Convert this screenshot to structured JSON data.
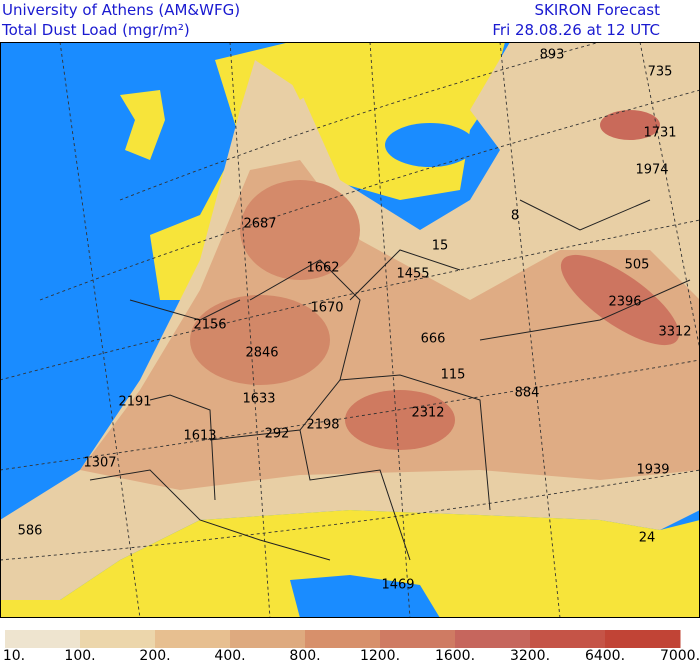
{
  "header": {
    "institution": "University of Athens (AM&WFG)",
    "product": "Total Dust Load (mgr/m²)",
    "model": "SKIRON Forecast",
    "time": "Fri 28.08.26 at 12 UTC"
  },
  "map": {
    "labels": [
      893,
      735,
      1731,
      1974,
      2687,
      8,
      15,
      1662,
      1455,
      505,
      2156,
      1670,
      2396,
      3312,
      2846,
      666,
      115,
      884,
      2191,
      1633,
      2312,
      1613,
      292,
      2198,
      1307,
      1939,
      586,
      24,
      1469
    ]
  },
  "colorbar": {
    "labels": [
      "10.",
      "100.",
      "200.",
      "400.",
      "800.",
      "1200.",
      "1600.",
      "3200.",
      "6400.",
      "7000."
    ],
    "colors": [
      "#eee4cf",
      "#ecd6ab",
      "#e7bf90",
      "#deaa7f",
      "#d7906b",
      "#cf7b63",
      "#c6665d",
      "#c55447",
      "#c14436"
    ]
  }
}
